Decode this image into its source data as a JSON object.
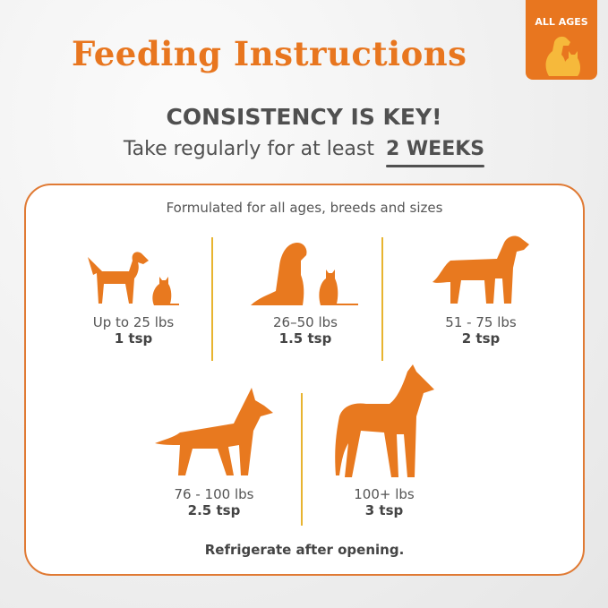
{
  "title": "Feeding Instructions",
  "badge": {
    "label": "ALL AGES",
    "icon": "dog-and-cat-icon"
  },
  "headline": "CONSISTENCY IS KEY!",
  "subheadline": {
    "prefix": "Take regularly for at least",
    "emphasis": "2 WEEKS"
  },
  "card": {
    "intro": "Formulated for all ages, breeds and sizes",
    "doses": [
      {
        "weight": "Up to 25 lbs",
        "dose": "1 tsp",
        "icon": "small-dog-and-cat-icon"
      },
      {
        "weight": "26–50 lbs",
        "dose": "1.5 tsp",
        "icon": "sitting-dog-and-cat-icon"
      },
      {
        "weight": "51 - 75 lbs",
        "dose": "2 tsp",
        "icon": "labrador-icon"
      },
      {
        "weight": "76 - 100 lbs",
        "dose": "2.5 tsp",
        "icon": "shepherd-dog-icon"
      },
      {
        "weight": "100+ lbs",
        "dose": "3 tsp",
        "icon": "great-dane-icon"
      }
    ],
    "note": "Refrigerate after opening."
  },
  "colors": {
    "brand_orange": "#e8761f",
    "divider_gold": "#e8b430",
    "text": "#4a4a4a"
  }
}
